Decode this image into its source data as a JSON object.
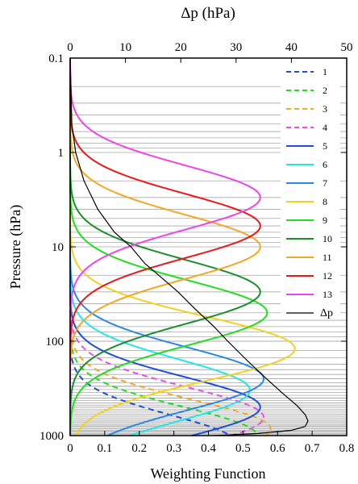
{
  "chart_data": {
    "type": "line",
    "title": "",
    "xlabel": "Weighting Function",
    "ylabel": "Pressure (hPa)",
    "x2label": "Δp (hPa)",
    "xlim": [
      0,
      0.8
    ],
    "x2lim": [
      0,
      50
    ],
    "ylim": [
      0.1,
      1000
    ],
    "yscale": "log",
    "yinverted": true,
    "xticks": [
      "0",
      "0.1",
      "0.2",
      "0.3",
      "0.4",
      "0.5",
      "0.6",
      "0.7",
      "0.8"
    ],
    "x2ticks": [
      "0",
      "10",
      "20",
      "30",
      "40",
      "50"
    ],
    "yticks": [
      "0.1",
      "1",
      "10",
      "100",
      "1000"
    ],
    "grid": "horizontal lines at each pressure level",
    "legend_position": "right",
    "series": [
      {
        "name": "1",
        "color": "#1f4fd8",
        "dashed": true,
        "peak_value": 0.48,
        "peak_pressure": 1200,
        "width": 0.42
      },
      {
        "name": "2",
        "color": "#22dd22",
        "dashed": true,
        "peak_value": 0.54,
        "peak_pressure": 1000,
        "width": 0.43
      },
      {
        "name": "3",
        "color": "#f5a623",
        "dashed": true,
        "peak_value": 0.58,
        "peak_pressure": 850,
        "width": 0.44
      },
      {
        "name": "4",
        "color": "#e84ee8",
        "dashed": true,
        "peak_value": 0.56,
        "peak_pressure": 640,
        "width": 0.45
      },
      {
        "name": "5",
        "color": "#1f4fd8",
        "dashed": false,
        "peak_value": 0.55,
        "peak_pressure": 500,
        "width": 0.45
      },
      {
        "name": "6",
        "color": "#22e6e6",
        "dashed": false,
        "peak_value": 0.52,
        "peak_pressure": 330,
        "width": 0.46
      },
      {
        "name": "7",
        "color": "#2b87e8",
        "dashed": false,
        "peak_value": 0.56,
        "peak_pressure": 250,
        "width": 0.47
      },
      {
        "name": "8",
        "color": "#f5d11f",
        "dashed": false,
        "peak_value": 0.65,
        "peak_pressure": 120,
        "width": 0.48
      },
      {
        "name": "9",
        "color": "#22dd22",
        "dashed": false,
        "peak_value": 0.57,
        "peak_pressure": 50,
        "width": 0.48
      },
      {
        "name": "10",
        "color": "#1a8f2e",
        "dashed": false,
        "peak_value": 0.55,
        "peak_pressure": 30,
        "width": 0.48
      },
      {
        "name": "11",
        "color": "#f5a623",
        "dashed": false,
        "peak_value": 0.55,
        "peak_pressure": 10,
        "width": 0.48
      },
      {
        "name": "12",
        "color": "#e81a1a",
        "dashed": false,
        "peak_value": 0.55,
        "peak_pressure": 6,
        "width": 0.48
      },
      {
        "name": "13",
        "color": "#ee44ee",
        "dashed": false,
        "peak_value": 0.55,
        "peak_pressure": 3,
        "width": 0.48
      },
      {
        "name": "Δp",
        "color": "#000000",
        "dashed": false,
        "axis": "top",
        "points": [
          [
            0.02,
            0.1
          ],
          [
            0.3,
            0.5
          ],
          [
            1,
            1
          ],
          [
            2.5,
            2
          ],
          [
            5,
            4
          ],
          [
            8,
            7
          ],
          [
            11,
            10
          ],
          [
            13.5,
            15
          ],
          [
            16,
            20
          ],
          [
            19.5,
            30
          ],
          [
            22.5,
            45
          ],
          [
            26,
            70
          ],
          [
            28.5,
            100
          ],
          [
            32,
            160
          ],
          [
            35.5,
            250
          ],
          [
            38.5,
            360
          ],
          [
            41,
            480
          ],
          [
            42.5,
            600
          ],
          [
            43,
            700
          ],
          [
            42.5,
            800
          ],
          [
            40,
            880
          ],
          [
            34,
            950
          ],
          [
            26,
            1000
          ]
        ]
      }
    ]
  }
}
